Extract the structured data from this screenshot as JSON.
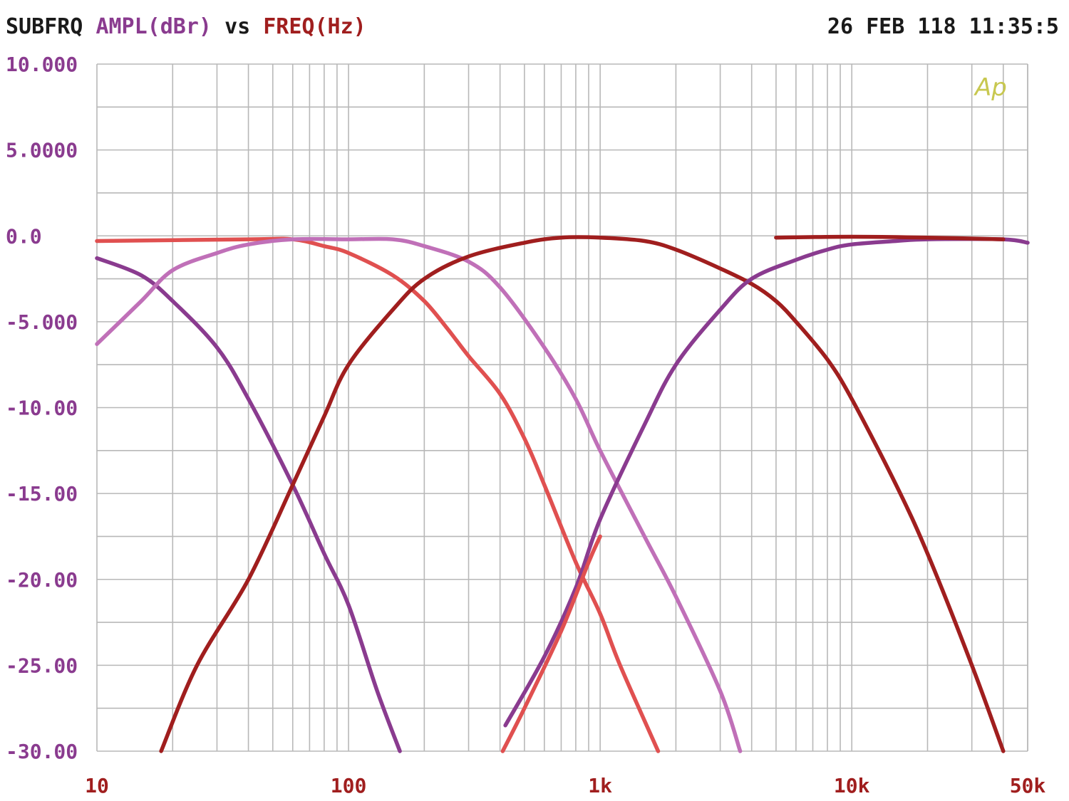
{
  "header": {
    "title": "SUBFRQ",
    "ylabel": "AMPL(dBr)",
    "vs": "vs",
    "xlabel": "FREQ(Hz)",
    "timestamp": "26 FEB 118 11:35:5"
  },
  "logo": "Ap",
  "chart_data": {
    "type": "line",
    "title": "SUBFRQ",
    "ylabel": "AMPL(dBr)",
    "xlabel": "FREQ(Hz)",
    "xscale": "log",
    "xlim": [
      10,
      50000
    ],
    "ylim": [
      -30,
      10
    ],
    "grid": true,
    "x_tick_labels": [
      "10",
      "100",
      "1k",
      "10k",
      "50k"
    ],
    "x_tick_values": [
      10,
      100,
      1000,
      10000,
      50000
    ],
    "y_tick_labels": [
      "10.000",
      "5.0000",
      "0.0",
      "-5.000",
      "-10.00",
      "-15.00",
      "-20.00",
      "-25.00",
      "-30.00"
    ],
    "y_tick_values": [
      10,
      5,
      0,
      -5,
      -10,
      -15,
      -20,
      -25,
      -30
    ],
    "series": [
      {
        "color": "#8a3b8f",
        "points": [
          [
            10,
            -1.3
          ],
          [
            15,
            -2.3
          ],
          [
            20,
            -3.8
          ],
          [
            30,
            -6.5
          ],
          [
            40,
            -9.5
          ],
          [
            60,
            -14.5
          ],
          [
            80,
            -18.5
          ],
          [
            100,
            -21.5
          ],
          [
            130,
            -26.5
          ],
          [
            160,
            -30
          ]
        ]
      },
      {
        "color": "#e05050",
        "points": [
          [
            10,
            -0.3
          ],
          [
            40,
            -0.2
          ],
          [
            60,
            -0.2
          ],
          [
            80,
            -0.6
          ],
          [
            100,
            -1.0
          ],
          [
            150,
            -2.3
          ],
          [
            200,
            -3.8
          ],
          [
            250,
            -5.5
          ],
          [
            300,
            -7.0
          ],
          [
            400,
            -9.2
          ],
          [
            500,
            -11.8
          ],
          [
            600,
            -14.5
          ],
          [
            800,
            -19.0
          ],
          [
            1000,
            -22.0
          ],
          [
            1200,
            -25.0
          ],
          [
            1700,
            -30
          ]
        ]
      },
      {
        "color": "#c070b8",
        "points": [
          [
            10,
            -6.3
          ],
          [
            15,
            -3.8
          ],
          [
            20,
            -2.0
          ],
          [
            30,
            -1.0
          ],
          [
            40,
            -0.5
          ],
          [
            60,
            -0.2
          ],
          [
            100,
            -0.2
          ],
          [
            150,
            -0.2
          ],
          [
            200,
            -0.6
          ],
          [
            300,
            -1.5
          ],
          [
            400,
            -3.0
          ],
          [
            600,
            -6.5
          ],
          [
            800,
            -9.5
          ],
          [
            1000,
            -12.5
          ],
          [
            1500,
            -17.5
          ],
          [
            2000,
            -21.0
          ],
          [
            3000,
            -26.5
          ],
          [
            3600,
            -30
          ]
        ]
      },
      {
        "color": "#a01e1e",
        "points": [
          [
            18,
            -30
          ],
          [
            25,
            -25
          ],
          [
            40,
            -20
          ],
          [
            60,
            -14.5
          ],
          [
            80,
            -10.5
          ],
          [
            100,
            -7.5
          ],
          [
            150,
            -4.3
          ],
          [
            200,
            -2.5
          ],
          [
            300,
            -1.2
          ],
          [
            500,
            -0.4
          ],
          [
            700,
            -0.1
          ],
          [
            1000,
            -0.1
          ],
          [
            1500,
            -0.3
          ],
          [
            2000,
            -0.8
          ],
          [
            3000,
            -1.9
          ],
          [
            4000,
            -2.8
          ],
          [
            5000,
            -3.8
          ],
          [
            6000,
            -5.0
          ],
          [
            8000,
            -7.2
          ],
          [
            10000,
            -9.5
          ],
          [
            15000,
            -14.5
          ],
          [
            20000,
            -18.5
          ],
          [
            30000,
            -25.0
          ],
          [
            40000,
            -30
          ]
        ]
      },
      {
        "color": "#8a3b8f",
        "points": [
          [
            420,
            -28.5
          ],
          [
            600,
            -24.5
          ],
          [
            800,
            -20.5
          ],
          [
            1000,
            -16.5
          ],
          [
            1500,
            -11.0
          ],
          [
            2000,
            -7.5
          ],
          [
            3000,
            -4.3
          ],
          [
            4000,
            -2.5
          ],
          [
            6000,
            -1.4
          ],
          [
            8000,
            -0.8
          ],
          [
            10000,
            -0.5
          ],
          [
            15000,
            -0.3
          ],
          [
            20000,
            -0.2
          ],
          [
            40000,
            -0.2
          ],
          [
            50000,
            -0.4
          ]
        ]
      },
      {
        "color": "#e05050",
        "points": [
          [
            410,
            -30
          ],
          [
            500,
            -27.5
          ],
          [
            700,
            -23.0
          ],
          [
            900,
            -19.0
          ],
          [
            1000,
            -17.5
          ]
        ]
      },
      {
        "color": "#a01e1e",
        "points": [
          [
            5000,
            -0.1
          ],
          [
            10000,
            -0.05
          ],
          [
            20000,
            -0.1
          ],
          [
            40000,
            -0.2
          ]
        ]
      }
    ]
  }
}
